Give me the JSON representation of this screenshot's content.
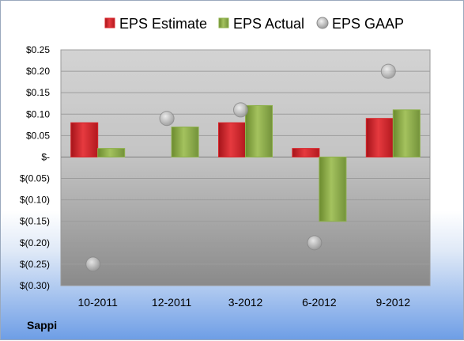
{
  "company": "Sappi",
  "colors": {
    "estimate": "#d8262b",
    "actual": "#8db04a",
    "gaap": "#a9a9a9"
  },
  "chart_data": {
    "type": "bar",
    "categories": [
      "10-2011",
      "12-2011",
      "3-2012",
      "6-2012",
      "9-2012"
    ],
    "series": [
      {
        "name": "EPS Estimate",
        "kind": "bar",
        "values": [
          0.08,
          null,
          0.08,
          0.02,
          0.09
        ]
      },
      {
        "name": "EPS Actual",
        "kind": "bar",
        "values": [
          0.02,
          0.07,
          0.12,
          -0.15,
          0.11
        ]
      },
      {
        "name": "EPS GAAP",
        "kind": "scatter",
        "values": [
          -0.25,
          0.09,
          0.11,
          -0.2,
          0.2
        ]
      }
    ],
    "ylim": [
      -0.3,
      0.25
    ],
    "yticks": [
      0.25,
      0.2,
      0.15,
      0.1,
      0.05,
      0,
      -0.05,
      -0.1,
      -0.15,
      -0.2,
      -0.25,
      -0.3
    ],
    "ytick_labels": [
      "$0.25",
      "$0.20",
      "$0.15",
      "$0.10",
      "$0.05",
      "$-",
      "$(0.05)",
      "$(0.10)",
      "$(0.15)",
      "$(0.20)",
      "$(0.25)",
      "$(0.30)"
    ],
    "legend_position": "top",
    "grid": true
  }
}
